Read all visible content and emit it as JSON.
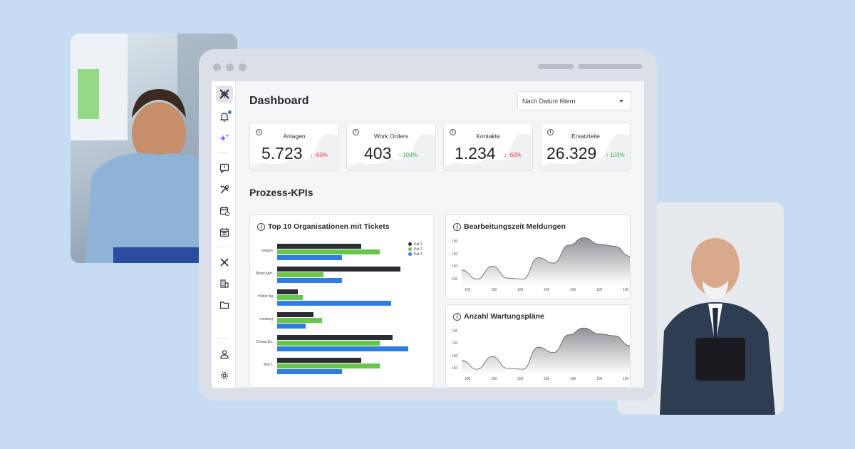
{
  "colors": {
    "background": "#c5dcf2",
    "series": [
      "#2b2d35",
      "#6ac64a",
      "#2f7de1"
    ],
    "down": "#e23b3b",
    "up": "#2fa84f"
  },
  "sidebar": {
    "icons": [
      "app-logo-icon",
      "bell-icon",
      "sparkle-icon",
      "message-alert-icon",
      "tools-icon",
      "calendar-repeat-icon",
      "calendar-list-icon",
      "app-logo-icon",
      "building-icon",
      "folder-icon",
      "user-icon",
      "gear-icon"
    ]
  },
  "header": {
    "title": "Dashboard",
    "filter_placeholder": "Nach Datum filtern"
  },
  "kpis": [
    {
      "label": "Anlagen",
      "value": "5.723",
      "delta": "↓ -60%",
      "trend": "down"
    },
    {
      "label": "Work Orders",
      "value": "403",
      "delta": "↑ 103%",
      "trend": "up"
    },
    {
      "label": "Kontakte",
      "value": "1.234",
      "delta": "↓ -60%",
      "trend": "down"
    },
    {
      "label": "Ersatzteile",
      "value": "26.329",
      "delta": "↑ 103%",
      "trend": "up"
    }
  ],
  "section_title": "Prozess-KPIs",
  "chart_data": [
    {
      "type": "bar",
      "orientation": "horizontal",
      "title": "Top 10 Organisationen mit Tickets",
      "categories": [
        "avegos",
        "Rhein Met.",
        "Huber Ag",
        "remberg",
        "Donau Es.",
        "Test 1"
      ],
      "series": [
        {
          "name": "Kat 1",
          "values": [
            62,
            91,
            15,
            27,
            85,
            62
          ]
        },
        {
          "name": "Kat 2",
          "values": [
            76,
            34,
            19,
            33,
            76,
            76
          ]
        },
        {
          "name": "Kat 3",
          "values": [
            48,
            48,
            84,
            21,
            97,
            48
          ]
        }
      ],
      "legend": "top-right"
    },
    {
      "type": "area",
      "title": "Bearbeitungszeit Meldungen",
      "x_ticks": [
        "100",
        "100",
        "100",
        "100",
        "100",
        "100",
        "100"
      ],
      "y_ticks": [
        "100",
        "100",
        "100",
        "100"
      ],
      "values": [
        30,
        12,
        38,
        14,
        12,
        55,
        44,
        80,
        95,
        82,
        78,
        58
      ]
    },
    {
      "type": "area",
      "title": "Anzahl Wartungspläne",
      "x_ticks": [
        "100",
        "100",
        "100",
        "100",
        "100",
        "100",
        "100"
      ],
      "y_ticks": [
        "100",
        "100",
        "100",
        "100"
      ],
      "values": [
        28,
        10,
        36,
        12,
        10,
        55,
        44,
        80,
        94,
        82,
        78,
        58
      ]
    }
  ]
}
